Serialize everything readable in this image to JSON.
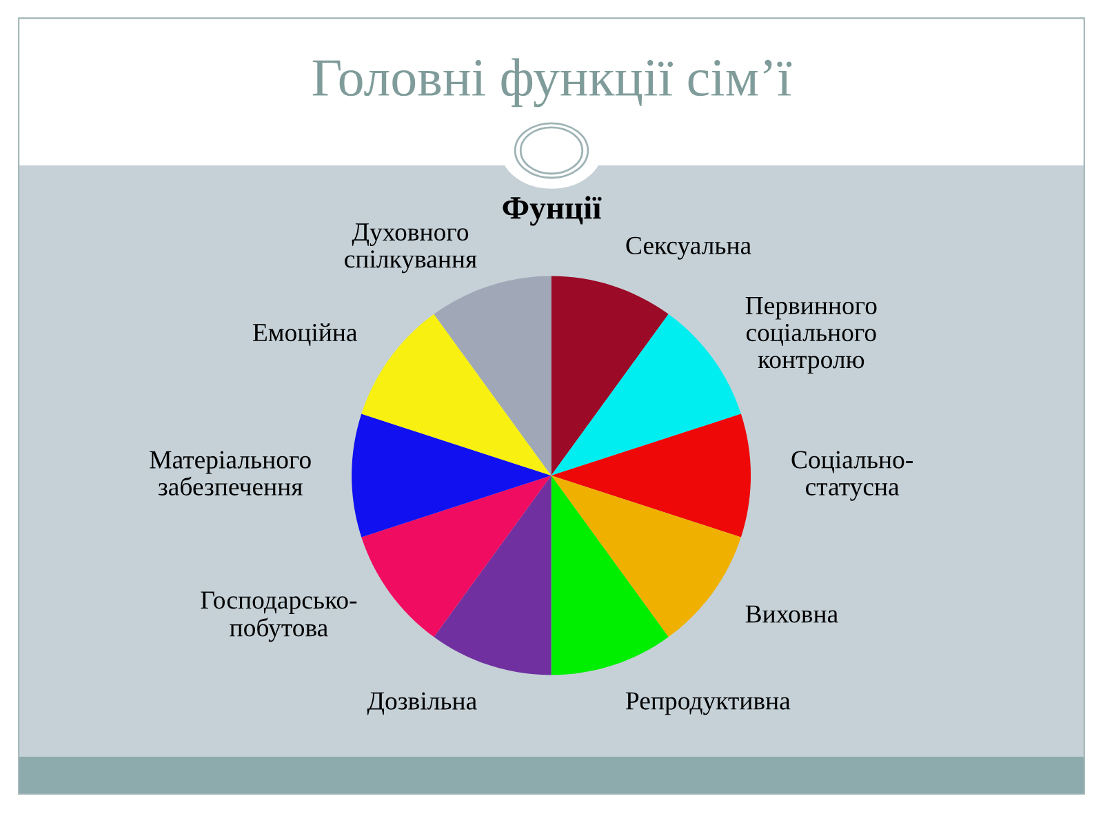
{
  "chart_data": {
    "type": "pie",
    "title": "Головні функції сім’ї",
    "subtitle": "Фунції",
    "categories": [
      "Сексуальна",
      "Первинного\nсоціального\nконтролю",
      "Соціально-\nстатусна",
      "Виховна",
      "Репродуктивна",
      "Дозвільна",
      "Господарсько-\nпобутова",
      "Матеріального\nзабезпечення",
      "Емоційна",
      "Духовного\nспілкування"
    ],
    "values": [
      10,
      10,
      10,
      10,
      10,
      10,
      10,
      10,
      10,
      10
    ],
    "colors": [
      "#9b0a26",
      "#00eef0",
      "#ee0808",
      "#f0b000",
      "#00ee00",
      "#7030a0",
      "#f00c60",
      "#1010f0",
      "#f8f010",
      "#a0a8b8"
    ],
    "legend": false
  }
}
